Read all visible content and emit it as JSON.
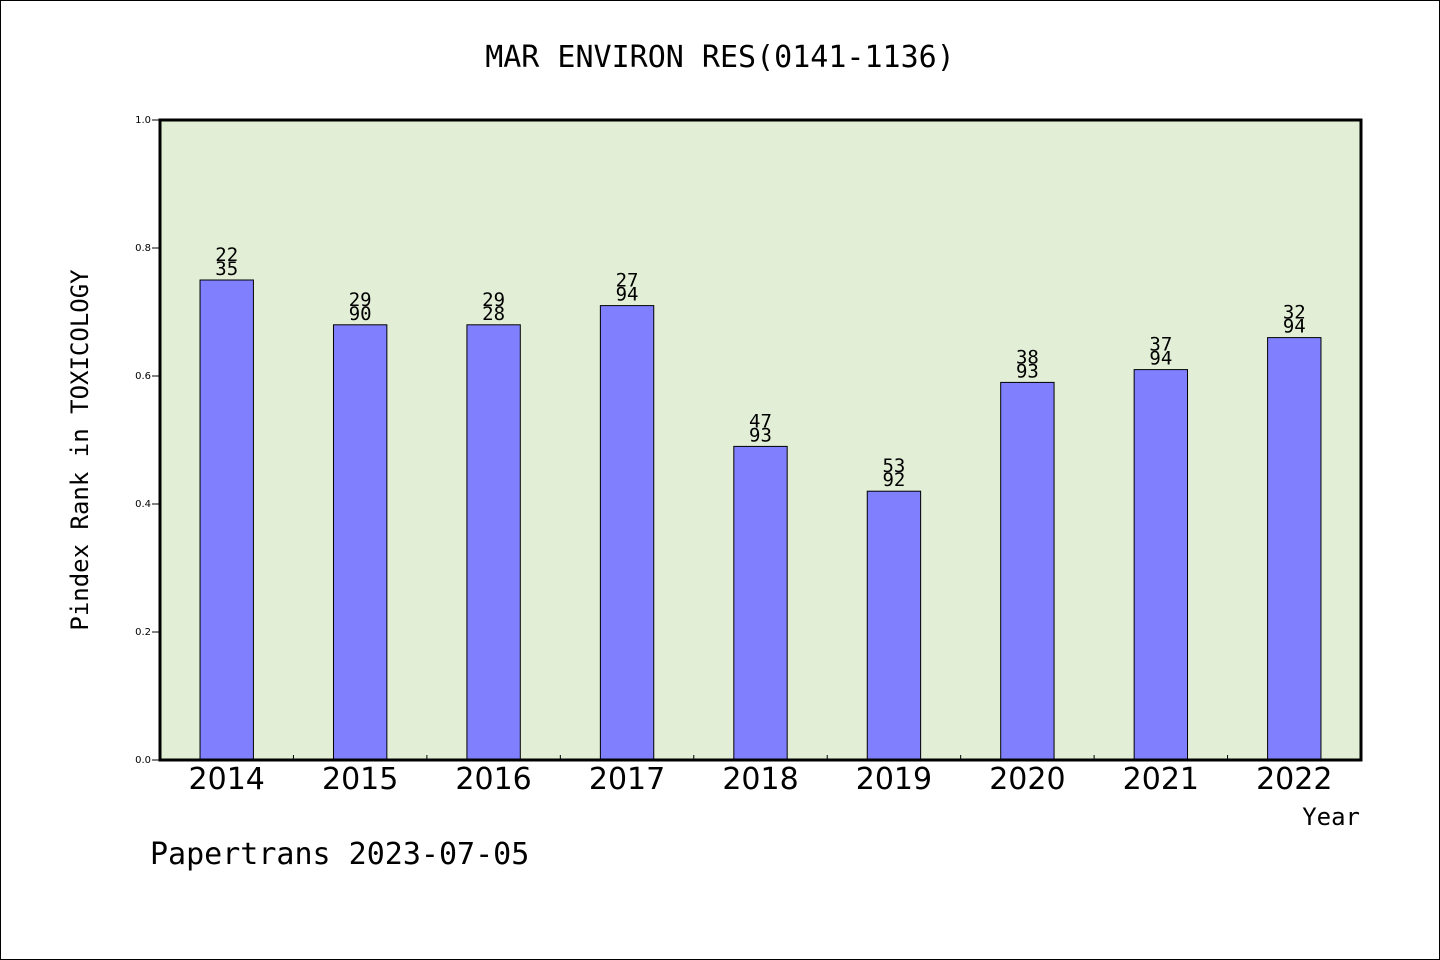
{
  "chart_data": {
    "type": "bar",
    "title": "MAR ENVIRON RES(0141-1136)",
    "xlabel": "Year",
    "ylabel": "Pindex Rank in TOXICOLOGY",
    "categories": [
      "2014",
      "2015",
      "2016",
      "2017",
      "2018",
      "2019",
      "2020",
      "2021",
      "2022"
    ],
    "values": [
      0.75,
      0.68,
      0.68,
      0.71,
      0.49,
      0.42,
      0.59,
      0.61,
      0.66
    ],
    "bar_labels": [
      [
        "22",
        "35"
      ],
      [
        "29",
        "90"
      ],
      [
        "29",
        "28"
      ],
      [
        "27",
        "94"
      ],
      [
        "47",
        "93"
      ],
      [
        "53",
        "92"
      ],
      [
        "38",
        "93"
      ],
      [
        "37",
        "94"
      ],
      [
        "32",
        "94"
      ]
    ],
    "ylim": [
      0.0,
      1.0
    ],
    "yticks": [
      "0.0",
      "0.2",
      "0.4",
      "0.6",
      "0.8",
      "1.0"
    ],
    "grid": false,
    "colors": {
      "plot_background": "#e2efd6",
      "bar_fill": "#8080ff",
      "bar_edge": "#000000"
    }
  },
  "footer": {
    "text": "Papertrans 2023-07-05"
  }
}
